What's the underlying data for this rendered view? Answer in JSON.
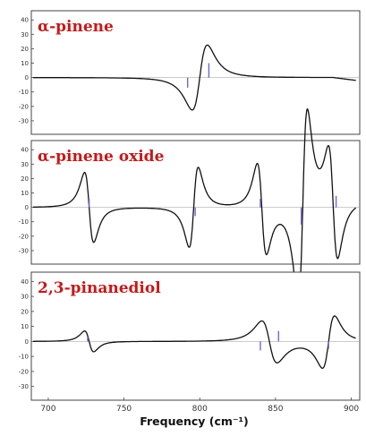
{
  "colors": {
    "title": "#c41a1a",
    "curve": "#111111",
    "marker": "#6a6ad8",
    "frame": "#444444"
  },
  "chart_data": {
    "type": "line",
    "xlabel": "Frequency (cm⁻¹)",
    "xlim": [
      690,
      905
    ],
    "xticks": [
      "700",
      "750",
      "800",
      "850",
      "900"
    ],
    "ylim": [
      -35,
      42
    ],
    "yticks": [
      "40",
      "30",
      "20",
      "10",
      "0",
      "-10",
      "-20",
      "-30"
    ],
    "panels": [
      {
        "title": "α-pinene",
        "bands": [
          {
            "x0": 800,
            "amp": 13,
            "gamma": 5
          }
        ],
        "markers": [
          {
            "x": 792,
            "sign": -1,
            "size": 7
          },
          {
            "x": 806,
            "sign": 1,
            "size": 10
          }
        ],
        "tail": {
          "x": 903,
          "y": -2
        }
      },
      {
        "title": "α-pinene oxide",
        "bands": [
          {
            "x0": 727,
            "amp": -14,
            "gamma": 3
          },
          {
            "x0": 796,
            "amp": 16,
            "gamma": 3
          },
          {
            "x0": 841,
            "amp": -18,
            "gamma": 3
          },
          {
            "x0": 868,
            "amp": 38,
            "gamma": 3
          },
          {
            "x0": 888,
            "amp": -22,
            "gamma": 3
          }
        ],
        "markers": [
          {
            "x": 727,
            "sign": 1,
            "size": 6
          },
          {
            "x": 797,
            "sign": -1,
            "size": 6
          },
          {
            "x": 840,
            "sign": 1,
            "size": 6
          },
          {
            "x": 867,
            "sign": -1,
            "size": 12
          },
          {
            "x": 890,
            "sign": 1,
            "size": 8
          }
        ],
        "tail": {
          "x": 903,
          "y": 3
        }
      },
      {
        "title": "2,3-pinanediol",
        "bands": [
          {
            "x0": 727,
            "amp": -4,
            "gamma": 3
          },
          {
            "x0": 846,
            "amp": -8,
            "gamma": 5
          },
          {
            "x0": 885,
            "amp": 10,
            "gamma": 4
          }
        ],
        "markers": [
          {
            "x": 726,
            "sign": 1,
            "size": 3
          },
          {
            "x": 840,
            "sign": -1,
            "size": 6
          },
          {
            "x": 852,
            "sign": 1,
            "size": 7
          },
          {
            "x": 885,
            "sign": -1,
            "size": 5
          }
        ],
        "tail": {
          "x": 903,
          "y": 0
        }
      }
    ]
  }
}
